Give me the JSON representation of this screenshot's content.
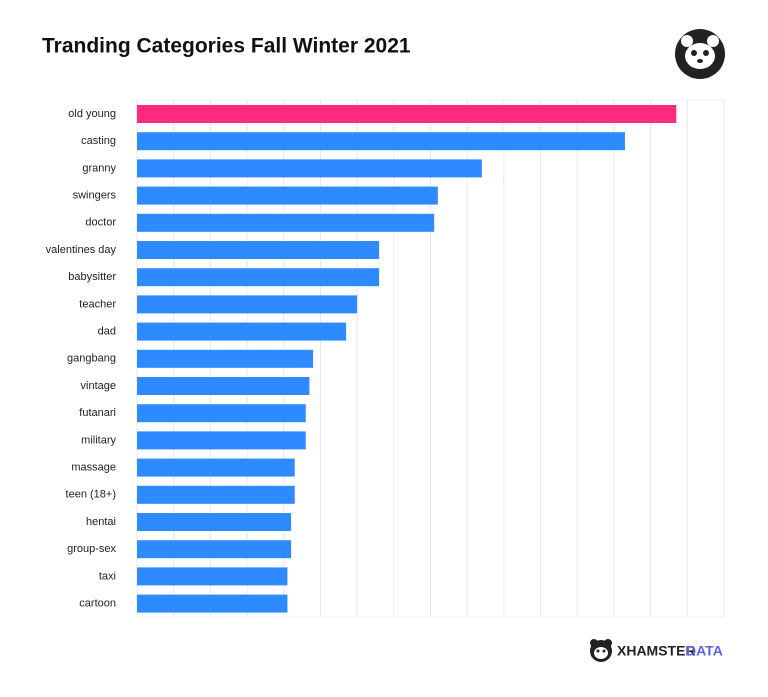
{
  "chart_data": {
    "type": "bar",
    "orientation": "horizontal",
    "title": "Tranding Categories Fall Winter 2021",
    "categories": [
      "old young",
      "casting",
      "granny",
      "swingers",
      "doctor",
      "valentines day",
      "babysitter",
      "teacher",
      "dad",
      "gangbang",
      "vintage",
      "futanari",
      "military",
      "massage",
      "teen (18+)",
      "hentai",
      "group-sex",
      "taxi",
      "cartoon"
    ],
    "values": [
      14.7,
      13.3,
      9.4,
      8.2,
      8.1,
      6.6,
      6.6,
      6.0,
      5.7,
      4.8,
      4.7,
      4.6,
      4.6,
      4.3,
      4.3,
      4.2,
      4.2,
      4.1,
      4.1
    ],
    "colors": [
      "#ff2a7f",
      "#2e8bff",
      "#2e8bff",
      "#2e8bff",
      "#2e8bff",
      "#2e8bff",
      "#2e8bff",
      "#2e8bff",
      "#2e8bff",
      "#2e8bff",
      "#2e8bff",
      "#2e8bff",
      "#2e8bff",
      "#2e8bff",
      "#2e8bff",
      "#2e8bff",
      "#2e8bff",
      "#2e8bff",
      "#2e8bff"
    ],
    "xlim": [
      0,
      16
    ],
    "xticks": [
      0,
      1,
      2,
      3,
      4,
      5,
      6,
      7,
      8,
      9,
      10,
      11,
      12,
      13,
      14,
      15,
      16
    ],
    "grid": true
  },
  "branding": {
    "brand": "XHAMSTER",
    "suffix": "DATA"
  }
}
